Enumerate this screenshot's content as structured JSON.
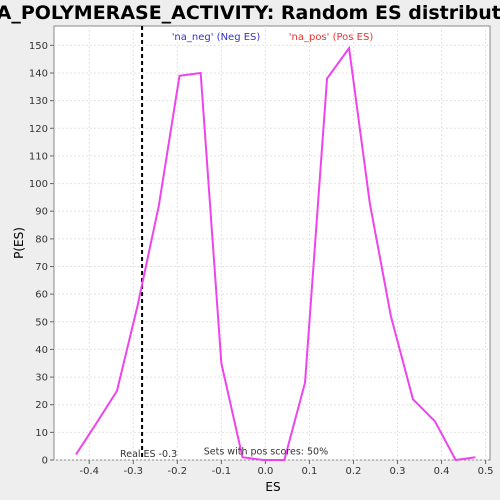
{
  "chart_data": {
    "type": "line",
    "title": "RNA_POLYMERASE_ACTIVITY: Random ES distribution",
    "xlabel": "ES",
    "ylabel": "P(ES)",
    "xlim": [
      -0.48,
      0.51
    ],
    "ylim": [
      0,
      157
    ],
    "x_ticks": [
      -0.4,
      -0.3,
      -0.2,
      -0.1,
      0.0,
      0.1,
      0.2,
      0.3,
      0.4,
      0.5
    ],
    "x_tick_labels": [
      "-0.4",
      "-0.3",
      "-0.2",
      "-0.1",
      "0.0",
      "0.1",
      "0.2",
      "0.3",
      "0.4",
      "0.5"
    ],
    "y_ticks": [
      0,
      10,
      20,
      30,
      40,
      50,
      60,
      70,
      80,
      90,
      100,
      110,
      120,
      130,
      140,
      150
    ],
    "y_tick_labels": [
      "0",
      "10",
      "20",
      "30",
      "40",
      "50",
      "60",
      "70",
      "80",
      "90",
      "100",
      "110",
      "120",
      "130",
      "140",
      "150"
    ],
    "grid": true,
    "legend": [
      {
        "label": "'na_neg' (Neg ES)",
        "color": "#3333cc"
      },
      {
        "label": "'na_pos' (Pos ES)",
        "color": "#e63333"
      }
    ],
    "series": [
      {
        "color": "#ee44ee",
        "x": [
          -0.43,
          -0.385,
          -0.337,
          -0.29,
          -0.242,
          -0.195,
          -0.147,
          -0.1,
          -0.052,
          -0.005,
          0.043,
          0.09,
          0.14,
          0.19,
          0.237,
          0.285,
          0.335,
          0.385,
          0.432,
          0.477
        ],
        "y": [
          2,
          13,
          25,
          56,
          92,
          139,
          140,
          35,
          1,
          0,
          0,
          28,
          138,
          149,
          93,
          52,
          22,
          14,
          0,
          1
        ]
      }
    ],
    "reference_line": {
      "x": -0.28,
      "style": "dashed",
      "color": "#000000"
    },
    "annotations": [
      {
        "text": "Real ES -0.3",
        "x": -0.33,
        "y": 1
      },
      {
        "text": "Sets with pos scores: 50%",
        "x": -0.14,
        "y": 2
      }
    ]
  }
}
